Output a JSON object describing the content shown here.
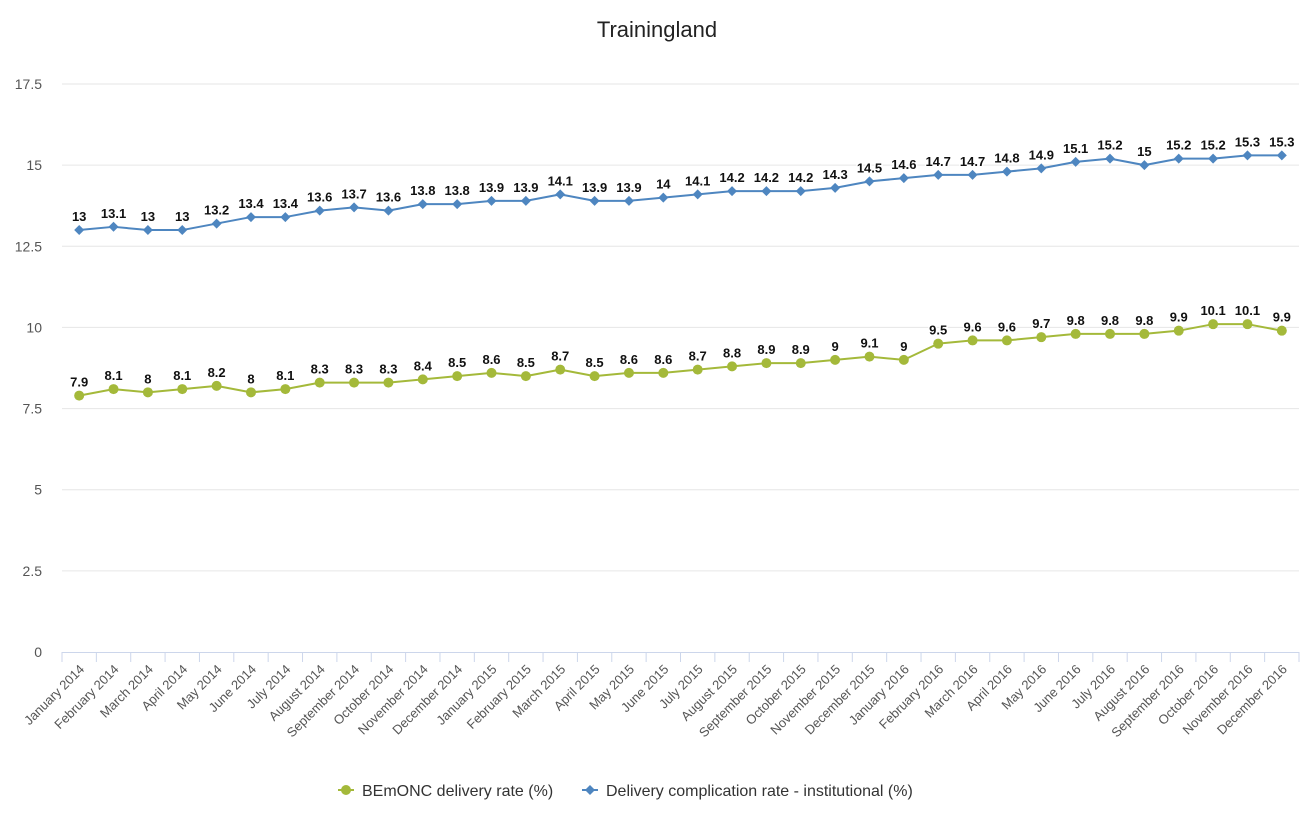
{
  "chart_data": {
    "type": "line",
    "title": "Trainingland",
    "xlabel": "",
    "ylabel": "",
    "ylim": [
      0,
      17.5
    ],
    "yticks": [
      "0",
      "2.5",
      "5",
      "7.5",
      "10",
      "12.5",
      "15",
      "17.5"
    ],
    "grid": true,
    "legend_position": "bottom-center",
    "categories": [
      "January 2014",
      "February 2014",
      "March 2014",
      "April 2014",
      "May 2014",
      "June 2014",
      "July 2014",
      "August 2014",
      "September 2014",
      "October 2014",
      "November 2014",
      "December 2014",
      "January 2015",
      "February 2015",
      "March 2015",
      "April 2015",
      "May 2015",
      "June 2015",
      "July 2015",
      "August 2015",
      "September 2015",
      "October 2015",
      "November 2015",
      "December 2015",
      "January 2016",
      "February 2016",
      "March 2016",
      "April 2016",
      "May 2016",
      "June 2016",
      "July 2016",
      "August 2016",
      "September 2016",
      "October 2016",
      "November 2016",
      "December 2016"
    ],
    "series": [
      {
        "name": "BEmONC delivery rate (%)",
        "color": "#a4b93a",
        "marker": "circle",
        "values": [
          7.9,
          8.1,
          8,
          8.1,
          8.2,
          8,
          8.1,
          8.3,
          8.3,
          8.3,
          8.4,
          8.5,
          8.6,
          8.5,
          8.7,
          8.5,
          8.6,
          8.6,
          8.7,
          8.8,
          8.9,
          8.9,
          9,
          9.1,
          9,
          9.5,
          9.6,
          9.6,
          9.7,
          9.8,
          9.8,
          9.8,
          9.9,
          10.1,
          10.1,
          9.9
        ]
      },
      {
        "name": "Delivery complication rate - institutional (%)",
        "color": "#4e86c0",
        "marker": "diamond",
        "values": [
          13,
          13.1,
          13,
          13,
          13.2,
          13.4,
          13.4,
          13.6,
          13.7,
          13.6,
          13.8,
          13.8,
          13.9,
          13.9,
          14.1,
          13.9,
          13.9,
          14,
          14.1,
          14.2,
          14.2,
          14.2,
          14.3,
          14.5,
          14.6,
          14.7,
          14.7,
          14.8,
          14.9,
          15.1,
          15.2,
          15,
          15.2,
          15.2,
          15.3,
          15.3
        ]
      }
    ]
  }
}
